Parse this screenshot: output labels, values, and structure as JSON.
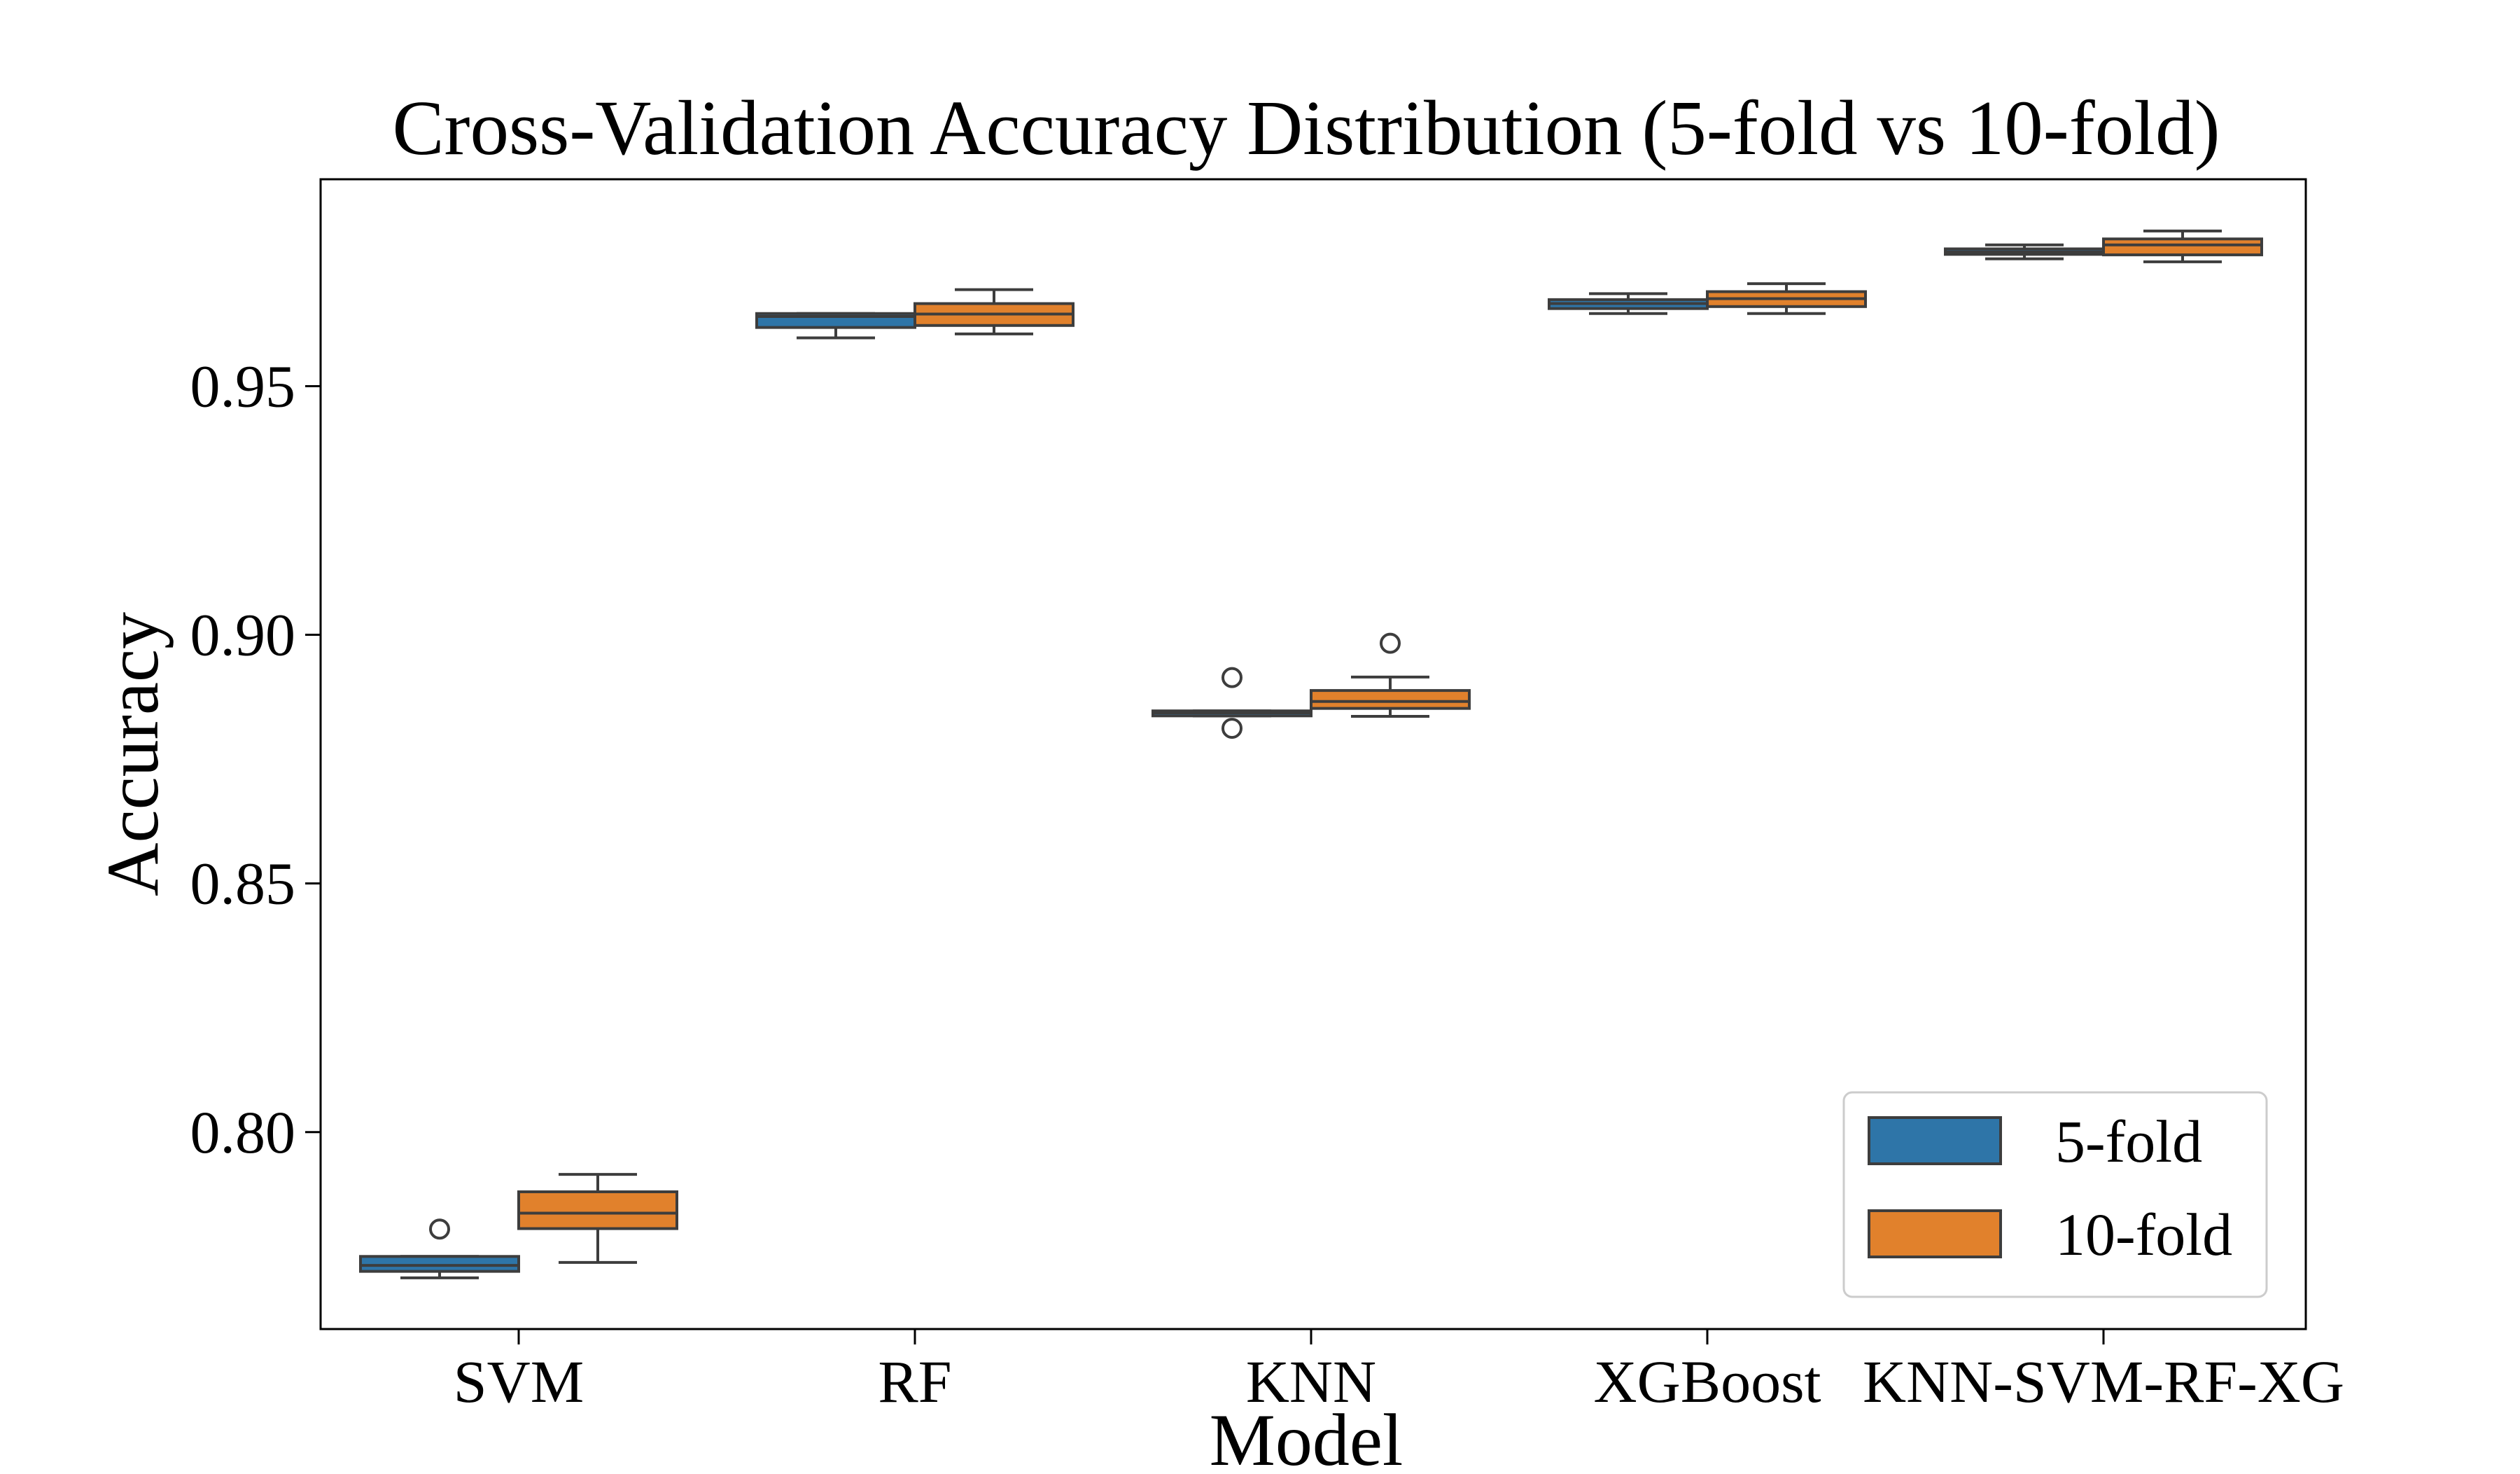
{
  "chart_data": {
    "type": "box",
    "title": "Cross-Validation Accuracy Distribution (5-fold vs 10-fold)",
    "xlabel": "Model",
    "ylabel": "Accuracy",
    "categories": [
      "SVM",
      "RF",
      "KNN",
      "XGBoost",
      "KNN-SVM-RF-XG"
    ],
    "yticks": [
      0.8,
      0.85,
      0.9,
      0.95
    ],
    "ytick_labels": [
      "0.80",
      "0.85",
      "0.90",
      "0.95"
    ],
    "ylim": [
      0.7604,
      0.9916
    ],
    "grid": false,
    "legend_position": "lower right",
    "series": [
      {
        "name": "5-fold",
        "color": "#2e75a8",
        "boxes": [
          {
            "whislo": 0.7707,
            "q1": 0.772,
            "med": 0.7732,
            "q3": 0.775,
            "whishi": 0.775,
            "fliers": [
              0.7805
            ]
          },
          {
            "whislo": 0.9597,
            "q1": 0.9618,
            "med": 0.964,
            "q3": 0.9646,
            "whishi": 0.9646,
            "fliers": []
          },
          {
            "whislo": 0.8837,
            "q1": 0.8837,
            "med": 0.8843,
            "q3": 0.8847,
            "whishi": 0.8847,
            "fliers": [
              0.8812,
              0.8914
            ]
          },
          {
            "whislo": 0.9646,
            "q1": 0.9656,
            "med": 0.9666,
            "q3": 0.9674,
            "whishi": 0.9686,
            "fliers": []
          },
          {
            "whislo": 0.9756,
            "q1": 0.9765,
            "med": 0.977,
            "q3": 0.9776,
            "whishi": 0.9784,
            "fliers": []
          }
        ]
      },
      {
        "name": "10-fold",
        "color": "#e1812c",
        "boxes": [
          {
            "whislo": 0.7738,
            "q1": 0.7806,
            "med": 0.7837,
            "q3": 0.788,
            "whishi": 0.7915,
            "fliers": []
          },
          {
            "whislo": 0.9605,
            "q1": 0.9622,
            "med": 0.9645,
            "q3": 0.9666,
            "whishi": 0.9694,
            "fliers": []
          },
          {
            "whislo": 0.8836,
            "q1": 0.8852,
            "med": 0.8866,
            "q3": 0.8888,
            "whishi": 0.8915,
            "fliers": [
              0.8983
            ]
          },
          {
            "whislo": 0.9646,
            "q1": 0.966,
            "med": 0.9676,
            "q3": 0.969,
            "whishi": 0.9706,
            "fliers": []
          },
          {
            "whislo": 0.975,
            "q1": 0.9764,
            "med": 0.9784,
            "q3": 0.9796,
            "whishi": 0.9812,
            "fliers": []
          }
        ]
      }
    ]
  }
}
